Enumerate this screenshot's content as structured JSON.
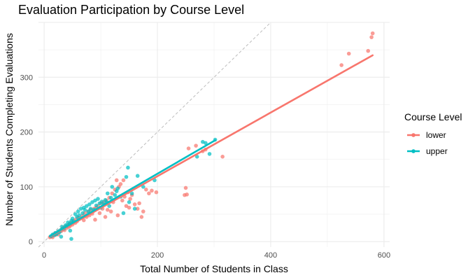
{
  "chart_data": {
    "type": "scatter",
    "title": "Evaluation Participation by Course Level",
    "xlabel": "Total Number of Students in Class",
    "ylabel": "Number of Students Completing Evaluations",
    "xlim": [
      -10,
      610
    ],
    "ylim": [
      -10,
      400
    ],
    "x_ticks": [
      0,
      200,
      400,
      600
    ],
    "y_ticks": [
      0,
      100,
      200,
      300
    ],
    "grid": true,
    "legend": {
      "title": "Course Level",
      "placement": "right"
    },
    "reference_line": {
      "slope": 1,
      "intercept": 0,
      "style": "dashed",
      "color": "#bdbdbd"
    },
    "series": [
      {
        "name": "lower",
        "color": "#F8766D",
        "points": [
          [
            10,
            8
          ],
          [
            12,
            9
          ],
          [
            14,
            10
          ],
          [
            15,
            8
          ],
          [
            16,
            12
          ],
          [
            18,
            13
          ],
          [
            20,
            12
          ],
          [
            20,
            15
          ],
          [
            22,
            14
          ],
          [
            24,
            17
          ],
          [
            25,
            13
          ],
          [
            26,
            18
          ],
          [
            28,
            20
          ],
          [
            30,
            19
          ],
          [
            32,
            24
          ],
          [
            33,
            22
          ],
          [
            35,
            26
          ],
          [
            36,
            21
          ],
          [
            38,
            28
          ],
          [
            40,
            25
          ],
          [
            42,
            30
          ],
          [
            44,
            27
          ],
          [
            45,
            33
          ],
          [
            46,
            29
          ],
          [
            48,
            35
          ],
          [
            50,
            31
          ],
          [
            52,
            38
          ],
          [
            55,
            34
          ],
          [
            56,
            40
          ],
          [
            58,
            37
          ],
          [
            60,
            44
          ],
          [
            62,
            41
          ],
          [
            65,
            43
          ],
          [
            68,
            47
          ],
          [
            70,
            39
          ],
          [
            72,
            52
          ],
          [
            75,
            45
          ],
          [
            78,
            55
          ],
          [
            80,
            48
          ],
          [
            82,
            58
          ],
          [
            85,
            51
          ],
          [
            88,
            60
          ],
          [
            90,
            40
          ],
          [
            92,
            62
          ],
          [
            95,
            65
          ],
          [
            98,
            52
          ],
          [
            100,
            70
          ],
          [
            103,
            60
          ],
          [
            105,
            72
          ],
          [
            108,
            45
          ],
          [
            110,
            75
          ],
          [
            112,
            58
          ],
          [
            115,
            80
          ],
          [
            118,
            55
          ],
          [
            120,
            88
          ],
          [
            122,
            72
          ],
          [
            125,
            95
          ],
          [
            128,
            112
          ],
          [
            130,
            48
          ],
          [
            132,
            100
          ],
          [
            135,
            105
          ],
          [
            138,
            75
          ],
          [
            140,
            112
          ],
          [
            142,
            82
          ],
          [
            145,
            65
          ],
          [
            148,
            90
          ],
          [
            150,
            62
          ],
          [
            152,
            78
          ],
          [
            155,
            85
          ],
          [
            160,
            68
          ],
          [
            165,
            60
          ],
          [
            168,
            70
          ],
          [
            172,
            45
          ],
          [
            175,
            55
          ],
          [
            180,
            95
          ],
          [
            185,
            88
          ],
          [
            190,
            93
          ],
          [
            198,
            90
          ],
          [
            248,
            85
          ],
          [
            250,
            98
          ],
          [
            252,
            86
          ],
          [
            255,
            170
          ],
          [
            268,
            175
          ],
          [
            280,
            165
          ],
          [
            285,
            168
          ],
          [
            315,
            155
          ],
          [
            525,
            322
          ],
          [
            538,
            343
          ],
          [
            572,
            348
          ],
          [
            578,
            373
          ],
          [
            580,
            380
          ]
        ],
        "fit": [
          [
            10,
            9
          ],
          [
            580,
            340
          ]
        ]
      },
      {
        "name": "upper",
        "color": "#00BFC4",
        "points": [
          [
            12,
            10
          ],
          [
            15,
            13
          ],
          [
            18,
            12
          ],
          [
            20,
            16
          ],
          [
            22,
            14
          ],
          [
            25,
            19
          ],
          [
            27,
            17
          ],
          [
            30,
            22
          ],
          [
            32,
            27
          ],
          [
            35,
            24
          ],
          [
            38,
            30
          ],
          [
            40,
            28
          ],
          [
            42,
            35
          ],
          [
            45,
            32
          ],
          [
            46,
            20
          ],
          [
            48,
            38
          ],
          [
            50,
            42
          ],
          [
            52,
            36
          ],
          [
            55,
            50
          ],
          [
            58,
            45
          ],
          [
            60,
            55
          ],
          [
            62,
            48
          ],
          [
            65,
            60
          ],
          [
            68,
            52
          ],
          [
            70,
            62
          ],
          [
            72,
            58
          ],
          [
            75,
            65
          ],
          [
            78,
            55
          ],
          [
            80,
            68
          ],
          [
            82,
            60
          ],
          [
            85,
            72
          ],
          [
            88,
            58
          ],
          [
            90,
            75
          ],
          [
            92,
            66
          ],
          [
            95,
            78
          ],
          [
            98,
            70
          ],
          [
            100,
            62
          ],
          [
            102,
            73
          ],
          [
            105,
            68
          ],
          [
            108,
            76
          ],
          [
            110,
            72
          ],
          [
            112,
            88
          ],
          [
            115,
            65
          ],
          [
            118,
            80
          ],
          [
            120,
            100
          ],
          [
            125,
            85
          ],
          [
            128,
            92
          ],
          [
            130,
            97
          ],
          [
            135,
            82
          ],
          [
            140,
            52
          ],
          [
            145,
            118
          ],
          [
            148,
            135
          ],
          [
            150,
            72
          ],
          [
            155,
            88
          ],
          [
            160,
            60
          ],
          [
            165,
            120
          ],
          [
            175,
            100
          ],
          [
            195,
            112
          ],
          [
            270,
            155
          ],
          [
            280,
            182
          ],
          [
            285,
            180
          ],
          [
            292,
            160
          ],
          [
            302,
            186
          ],
          [
            48,
            5
          ],
          [
            30,
            9
          ]
        ],
        "fit": [
          [
            10,
            10
          ],
          [
            302,
            185
          ]
        ]
      }
    ]
  }
}
